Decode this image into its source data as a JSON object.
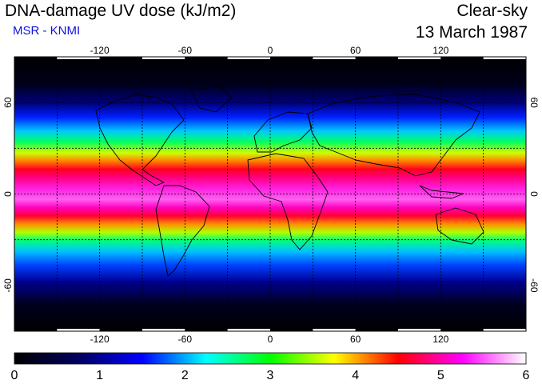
{
  "header": {
    "title": "DNA-damage UV dose (kJ/m2)",
    "subtitle": "MSR - KNMI",
    "sky_condition": "Clear-sky",
    "date": "13 March 1987"
  },
  "map": {
    "projection": "equirectangular",
    "lon_range": [
      -180,
      180
    ],
    "lat_range": [
      -90,
      90
    ],
    "grid": "on",
    "grid_style": "dotted",
    "lon_ticks": [
      -120,
      -60,
      0,
      60,
      120
    ],
    "lat_ticks": [
      60,
      0,
      -60
    ],
    "lon_tick_labels": [
      "-120",
      "-60",
      "0",
      "60",
      "120"
    ],
    "lat_tick_labels": [
      "60",
      "0",
      "-60"
    ]
  },
  "colorbar": {
    "min": 0,
    "max": 6,
    "tick_labels": [
      "0",
      "1",
      "2",
      "3",
      "4",
      "5",
      "6"
    ],
    "colors": [
      "#000000",
      "#000060",
      "#0000ff",
      "#00ffff",
      "#00ff00",
      "#ffff00",
      "#ff0000",
      "#ff00ff",
      "#ffffff"
    ]
  }
}
